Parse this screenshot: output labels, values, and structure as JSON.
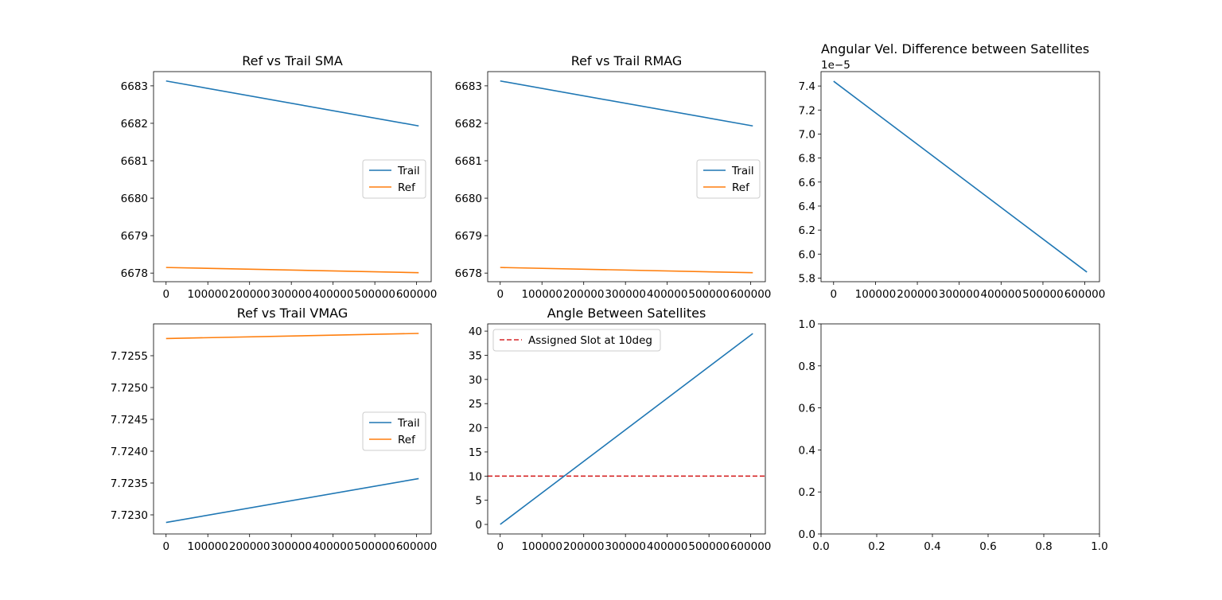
{
  "chart_data": [
    {
      "type": "line",
      "title": "Ref vs Trail SMA",
      "xlim": [
        -30000,
        635000
      ],
      "ylim": [
        6677.77,
        6683.38
      ],
      "xticks": [
        0,
        100000,
        200000,
        300000,
        400000,
        500000,
        600000
      ],
      "xtick_labels": [
        "0",
        "100000",
        "200000",
        "300000",
        "400000",
        "500000",
        "600000"
      ],
      "yticks": [
        6678,
        6679,
        6680,
        6681,
        6682,
        6683
      ],
      "ytick_labels": [
        "6678",
        "6679",
        "6680",
        "6681",
        "6682",
        "6683"
      ],
      "legend": "center-right",
      "series": [
        {
          "name": "Trail",
          "color": "#1f77b4",
          "x": [
            0,
            605000
          ],
          "y": [
            6683.13,
            6681.93
          ]
        },
        {
          "name": "Ref",
          "color": "#ff7f0e",
          "x": [
            0,
            605000
          ],
          "y": [
            6678.15,
            6678.01
          ]
        }
      ]
    },
    {
      "type": "line",
      "title": "Ref vs Trail RMAG",
      "xlim": [
        -30000,
        635000
      ],
      "ylim": [
        6677.77,
        6683.38
      ],
      "xticks": [
        0,
        100000,
        200000,
        300000,
        400000,
        500000,
        600000
      ],
      "xtick_labels": [
        "0",
        "100000",
        "200000",
        "300000",
        "400000",
        "500000",
        "600000"
      ],
      "yticks": [
        6678,
        6679,
        6680,
        6681,
        6682,
        6683
      ],
      "ytick_labels": [
        "6678",
        "6679",
        "6680",
        "6681",
        "6682",
        "6683"
      ],
      "legend": "center-right",
      "series": [
        {
          "name": "Trail",
          "color": "#1f77b4",
          "x": [
            0,
            605000
          ],
          "y": [
            6683.13,
            6681.93
          ]
        },
        {
          "name": "Ref",
          "color": "#ff7f0e",
          "x": [
            0,
            605000
          ],
          "y": [
            6678.15,
            6678.01
          ]
        }
      ]
    },
    {
      "type": "line",
      "title": "Angular Vel. Difference between Satellites",
      "offset_label": "1e−5",
      "xlim": [
        -30000,
        635000
      ],
      "ylim": [
        5.77,
        7.52
      ],
      "xticks": [
        0,
        100000,
        200000,
        300000,
        400000,
        500000,
        600000
      ],
      "xtick_labels": [
        "0",
        "100000",
        "200000",
        "300000",
        "400000",
        "500000",
        "600000"
      ],
      "yticks": [
        5.8,
        6.0,
        6.2,
        6.4,
        6.6,
        6.8,
        7.0,
        7.2,
        7.4
      ],
      "ytick_labels": [
        "5.8",
        "6.0",
        "6.2",
        "6.4",
        "6.6",
        "6.8",
        "7.0",
        "7.2",
        "7.4"
      ],
      "legend": "none",
      "series": [
        {
          "color": "#1f77b4",
          "x": [
            0,
            605000
          ],
          "y": [
            7.44,
            5.85
          ]
        }
      ]
    },
    {
      "type": "line",
      "title": "Ref vs Trail VMAG",
      "xlim": [
        -30000,
        635000
      ],
      "ylim": [
        7.7227,
        7.726
      ],
      "xticks": [
        0,
        100000,
        200000,
        300000,
        400000,
        500000,
        600000
      ],
      "xtick_labels": [
        "0",
        "100000",
        "200000",
        "300000",
        "400000",
        "500000",
        "600000"
      ],
      "yticks": [
        7.723,
        7.7235,
        7.724,
        7.7245,
        7.725,
        7.7255
      ],
      "ytick_labels": [
        "7.7230",
        "7.7235",
        "7.7240",
        "7.7245",
        "7.7250",
        "7.7255"
      ],
      "legend": "center-right",
      "series": [
        {
          "name": "Trail",
          "color": "#1f77b4",
          "x": [
            0,
            605000
          ],
          "y": [
            7.72288,
            7.72357
          ]
        },
        {
          "name": "Ref",
          "color": "#ff7f0e",
          "x": [
            0,
            605000
          ],
          "y": [
            7.72577,
            7.72585
          ]
        }
      ]
    },
    {
      "type": "line",
      "title": "Angle Between Satellites",
      "xlim": [
        -30000,
        635000
      ],
      "ylim": [
        -1.97,
        41.5
      ],
      "xticks": [
        0,
        100000,
        200000,
        300000,
        400000,
        500000,
        600000
      ],
      "xtick_labels": [
        "0",
        "100000",
        "200000",
        "300000",
        "400000",
        "500000",
        "600000"
      ],
      "yticks": [
        0,
        5,
        10,
        15,
        20,
        25,
        30,
        35,
        40
      ],
      "ytick_labels": [
        "0",
        "5",
        "10",
        "15",
        "20",
        "25",
        "30",
        "35",
        "40"
      ],
      "legend": "top-left",
      "series": [
        {
          "color": "#1f77b4",
          "x": [
            0,
            605000
          ],
          "y": [
            0,
            39.5
          ]
        }
      ],
      "hlines": [
        {
          "name": "Assigned Slot at 10deg",
          "y": 10,
          "color": "#d62728",
          "style": "dashed"
        }
      ]
    },
    {
      "type": "line",
      "title": "",
      "xlim": [
        0,
        1
      ],
      "ylim": [
        0,
        1
      ],
      "xticks": [
        0,
        0.2,
        0.4,
        0.6,
        0.8,
        1.0
      ],
      "xtick_labels": [
        "0.0",
        "0.2",
        "0.4",
        "0.6",
        "0.8",
        "1.0"
      ],
      "yticks": [
        0,
        0.2,
        0.4,
        0.6,
        0.8,
        1.0
      ],
      "ytick_labels": [
        "0.0",
        "0.2",
        "0.4",
        "0.6",
        "0.8",
        "1.0"
      ],
      "legend": "none",
      "series": []
    }
  ]
}
